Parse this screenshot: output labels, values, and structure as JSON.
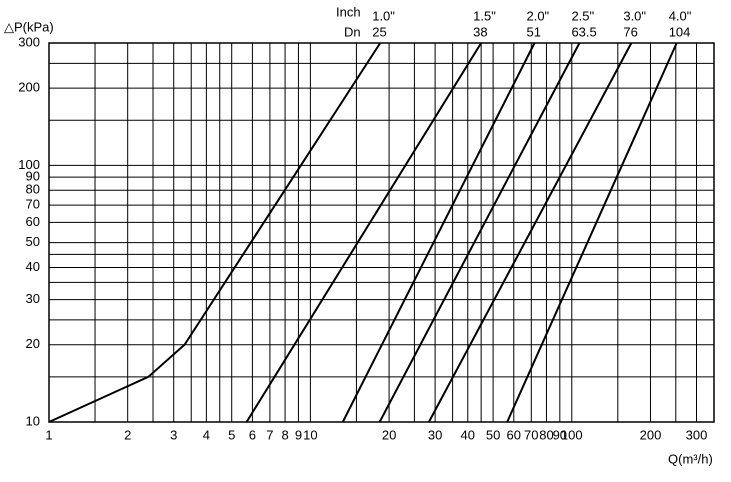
{
  "chart_data": {
    "type": "line",
    "x_label": "Q(m³/h)",
    "y_label": "△P(kPa)",
    "inch_header": "Inch",
    "dn_header": "Dn",
    "log_x": true,
    "log_y": true,
    "grid": true,
    "color": "#000000",
    "xlim": [
      1,
      350
    ],
    "ylim": [
      10,
      300
    ],
    "xticks": [
      1,
      2,
      3,
      4,
      5,
      6,
      7,
      8,
      9,
      10,
      20,
      30,
      40,
      50,
      60,
      70,
      80,
      90,
      100,
      200,
      300
    ],
    "xminor": [
      1.5,
      2.5,
      3.5,
      4.5,
      15,
      25,
      35,
      45,
      150,
      250
    ],
    "yticks": [
      10,
      20,
      30,
      40,
      50,
      60,
      70,
      80,
      90,
      100,
      200,
      300
    ],
    "yminor": [
      15,
      25,
      35,
      45,
      150,
      250
    ],
    "series": [
      {
        "inch": "1.0\"",
        "dn": "25",
        "x": [
          1,
          2.4,
          3.3,
          18.5
        ],
        "values": [
          10,
          15,
          20,
          300
        ]
      },
      {
        "inch": "1.5\"",
        "dn": "38",
        "x": [
          5.7,
          45
        ],
        "values": [
          10,
          300
        ]
      },
      {
        "inch": "2.0\"",
        "dn": "51",
        "x": [
          13.3,
          72
        ],
        "values": [
          10,
          300
        ]
      },
      {
        "inch": "2.5\"",
        "dn": "63.5",
        "x": [
          18.4,
          107
        ],
        "values": [
          10,
          300
        ]
      },
      {
        "inch": "3.0\"",
        "dn": "76",
        "x": [
          28.4,
          169
        ],
        "values": [
          10,
          300
        ]
      },
      {
        "inch": "4.0\"",
        "dn": "104",
        "x": [
          56.6,
          252
        ],
        "values": [
          10,
          300
        ]
      }
    ]
  }
}
